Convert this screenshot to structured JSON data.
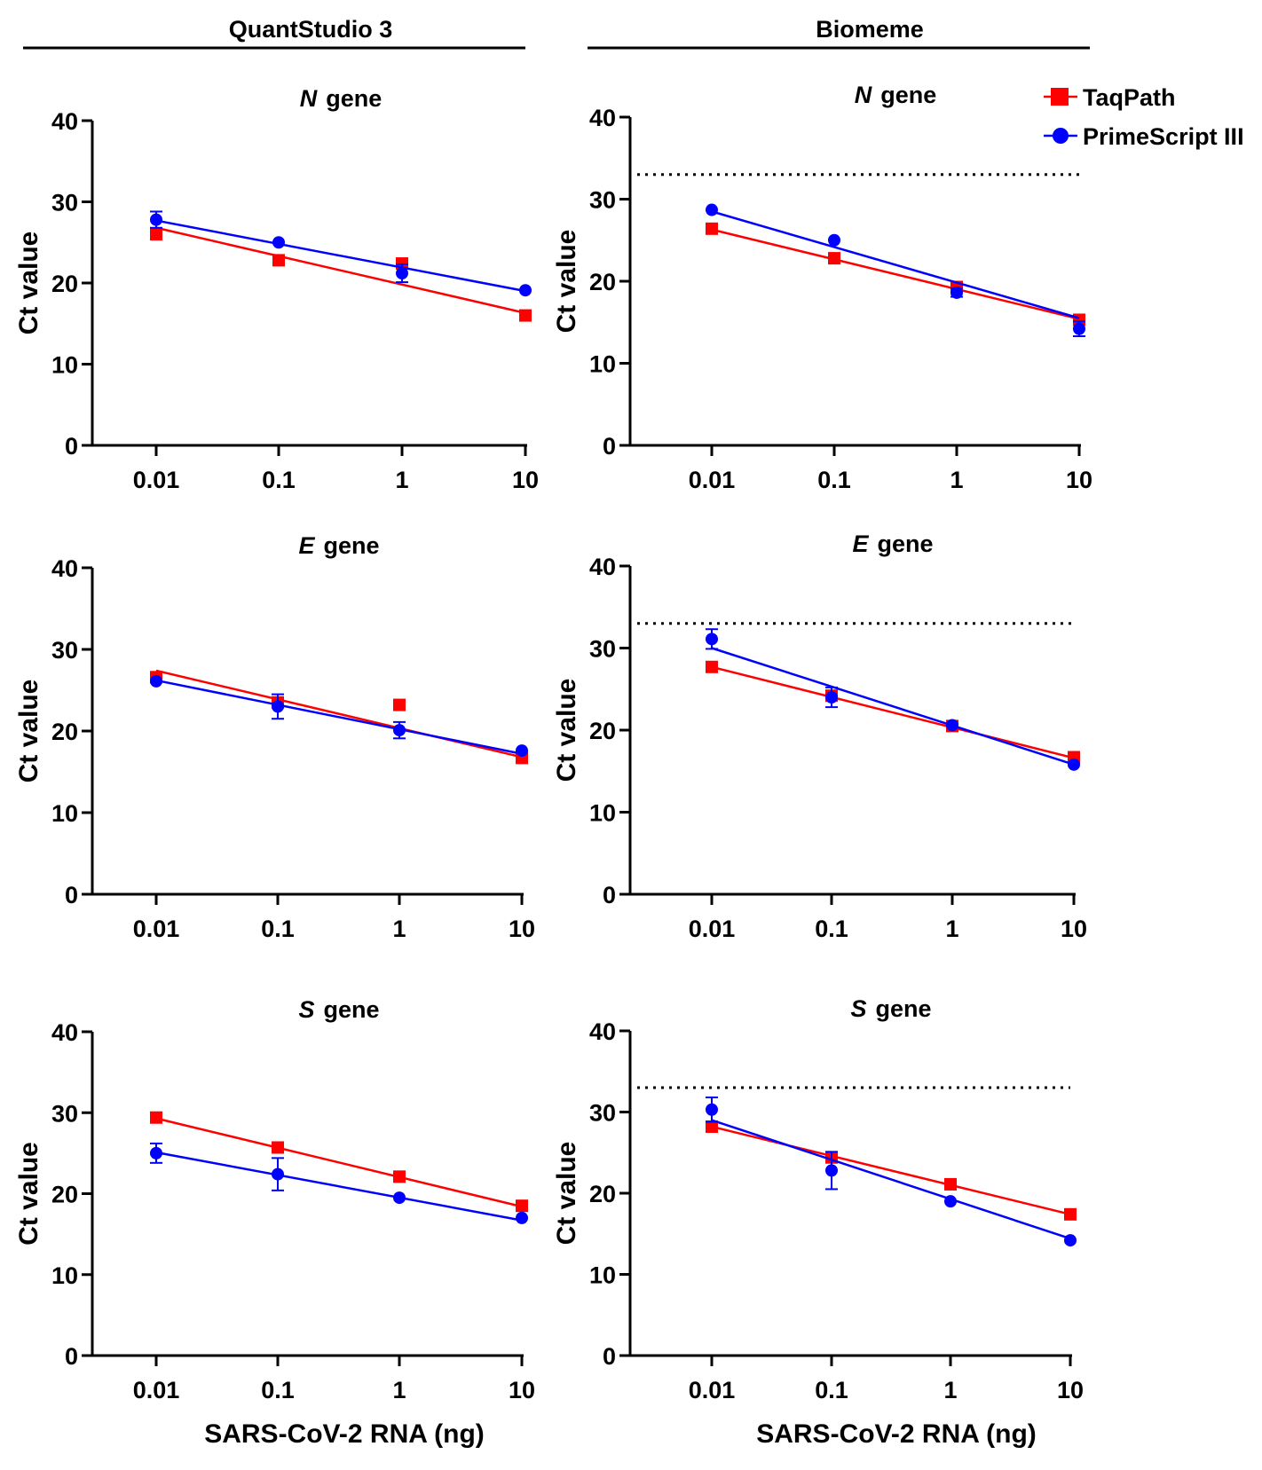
{
  "headers": {
    "left": "QuantStudio 3",
    "right": "Biomeme"
  },
  "legend": {
    "taqpath": "TaqPath",
    "primescript": "PrimeScript III"
  },
  "colors": {
    "taqpath": "#ff0000",
    "primescript": "#0000ff",
    "axis": "#000000"
  },
  "chart_data": [
    {
      "id": "qs-n",
      "type": "scatter",
      "gene": "N",
      "title_suffix": "gene",
      "instrument": "QuantStudio 3",
      "x": [
        0.01,
        0.1,
        1,
        10
      ],
      "xscale": "log",
      "xticks": [
        "0.01",
        "0.1",
        "1",
        "10"
      ],
      "ylabel": "Ct value",
      "xlabel": "",
      "ylim": [
        0,
        40
      ],
      "yticks": [
        "0",
        "10",
        "20",
        "30",
        "40"
      ],
      "cutoff": null,
      "series": [
        {
          "name": "TaqPath",
          "marker": "square",
          "values": [
            26.0,
            22.8,
            22.4,
            16.0
          ],
          "errors": [
            0,
            0,
            0,
            0
          ],
          "fit": [
            26.8,
            16.3
          ]
        },
        {
          "name": "PrimeScript III",
          "marker": "circle",
          "values": [
            27.8,
            25.0,
            21.2,
            19.1
          ],
          "errors": [
            1.0,
            0,
            1.1,
            0
          ],
          "fit": [
            27.7,
            19.0
          ]
        }
      ]
    },
    {
      "id": "bm-n",
      "type": "scatter",
      "gene": "N",
      "title_suffix": "gene",
      "instrument": "Biomeme",
      "x": [
        0.01,
        0.1,
        1,
        10
      ],
      "xscale": "log",
      "xticks": [
        "0.01",
        "0.1",
        "1",
        "10"
      ],
      "ylabel": "Ct value",
      "xlabel": "",
      "ylim": [
        0,
        40
      ],
      "yticks": [
        "0",
        "10",
        "20",
        "30",
        "40"
      ],
      "cutoff": 33,
      "series": [
        {
          "name": "TaqPath",
          "marker": "square",
          "values": [
            26.4,
            22.8,
            19.3,
            15.3
          ],
          "errors": [
            0,
            0,
            0,
            0
          ],
          "fit": [
            26.3,
            15.4
          ]
        },
        {
          "name": "PrimeScript III",
          "marker": "circle",
          "values": [
            28.7,
            25.0,
            18.6,
            14.2
          ],
          "errors": [
            0,
            0,
            0.5,
            0.9
          ],
          "fit": [
            28.5,
            15.5
          ]
        }
      ]
    },
    {
      "id": "qs-e",
      "type": "scatter",
      "gene": "E",
      "title_suffix": "gene",
      "instrument": "QuantStudio 3",
      "x": [
        0.01,
        0.1,
        1,
        10
      ],
      "xscale": "log",
      "xticks": [
        "0.01",
        "0.1",
        "1",
        "10"
      ],
      "ylabel": "Ct value",
      "xlabel": "",
      "ylim": [
        0,
        40
      ],
      "yticks": [
        "0",
        "10",
        "20",
        "30",
        "40"
      ],
      "cutoff": null,
      "series": [
        {
          "name": "TaqPath",
          "marker": "square",
          "values": [
            26.6,
            23.5,
            23.2,
            16.7
          ],
          "errors": [
            0,
            0,
            0,
            0
          ],
          "fit": [
            27.4,
            16.8
          ]
        },
        {
          "name": "PrimeScript III",
          "marker": "circle",
          "values": [
            26.1,
            23.0,
            20.1,
            17.6
          ],
          "errors": [
            0,
            1.5,
            1.0,
            0
          ],
          "fit": [
            26.2,
            17.2
          ]
        }
      ]
    },
    {
      "id": "bm-e",
      "type": "scatter",
      "gene": "E",
      "title_suffix": "gene",
      "instrument": "Biomeme",
      "x": [
        0.01,
        0.1,
        1,
        10
      ],
      "xscale": "log",
      "xticks": [
        "0.01",
        "0.1",
        "1",
        "10"
      ],
      "ylabel": "Ct value",
      "xlabel": "",
      "ylim": [
        0,
        40
      ],
      "yticks": [
        "0",
        "10",
        "20",
        "30",
        "40"
      ],
      "cutoff": 33,
      "series": [
        {
          "name": "TaqPath",
          "marker": "square",
          "values": [
            27.7,
            24.2,
            20.5,
            16.7
          ],
          "errors": [
            0,
            0,
            0,
            0
          ],
          "fit": [
            27.7,
            16.6
          ]
        },
        {
          "name": "PrimeScript III",
          "marker": "circle",
          "values": [
            31.1,
            24.0,
            20.6,
            15.8
          ],
          "errors": [
            1.2,
            1.2,
            0,
            0
          ],
          "fit": [
            30.0,
            15.8
          ]
        }
      ]
    },
    {
      "id": "qs-s",
      "type": "scatter",
      "gene": "S",
      "title_suffix": "gene",
      "instrument": "QuantStudio 3",
      "x": [
        0.01,
        0.1,
        1,
        10
      ],
      "xscale": "log",
      "xticks": [
        "0.01",
        "0.1",
        "1",
        "10"
      ],
      "ylabel": "Ct value",
      "xlabel": "SARS-CoV-2 RNA (ng)",
      "ylim": [
        0,
        40
      ],
      "yticks": [
        "0",
        "10",
        "20",
        "30",
        "40"
      ],
      "cutoff": null,
      "series": [
        {
          "name": "TaqPath",
          "marker": "square",
          "values": [
            29.4,
            25.7,
            22.1,
            18.5
          ],
          "errors": [
            0,
            0,
            0,
            0
          ],
          "fit": [
            29.3,
            18.4
          ]
        },
        {
          "name": "PrimeScript III",
          "marker": "circle",
          "values": [
            25.0,
            22.4,
            19.5,
            17.0
          ],
          "errors": [
            1.2,
            2.0,
            0,
            0
          ],
          "fit": [
            25.1,
            16.7
          ]
        }
      ]
    },
    {
      "id": "bm-s",
      "type": "scatter",
      "gene": "S",
      "title_suffix": "gene",
      "instrument": "Biomeme",
      "x": [
        0.01,
        0.1,
        1,
        10
      ],
      "xscale": "log",
      "xticks": [
        "0.01",
        "0.1",
        "1",
        "10"
      ],
      "ylabel": "Ct value",
      "xlabel": "SARS-CoV-2 RNA (ng)",
      "ylim": [
        0,
        40
      ],
      "yticks": [
        "0",
        "10",
        "20",
        "30",
        "40"
      ],
      "cutoff": 33,
      "series": [
        {
          "name": "TaqPath",
          "marker": "square",
          "values": [
            28.2,
            24.4,
            21.1,
            17.4
          ],
          "errors": [
            0,
            0,
            0,
            0
          ],
          "fit": [
            28.2,
            17.4
          ]
        },
        {
          "name": "PrimeScript III",
          "marker": "circle",
          "values": [
            30.3,
            22.8,
            19.0,
            14.2
          ],
          "errors": [
            1.5,
            2.3,
            0,
            0
          ],
          "fit": [
            29.0,
            14.4
          ]
        }
      ]
    }
  ]
}
